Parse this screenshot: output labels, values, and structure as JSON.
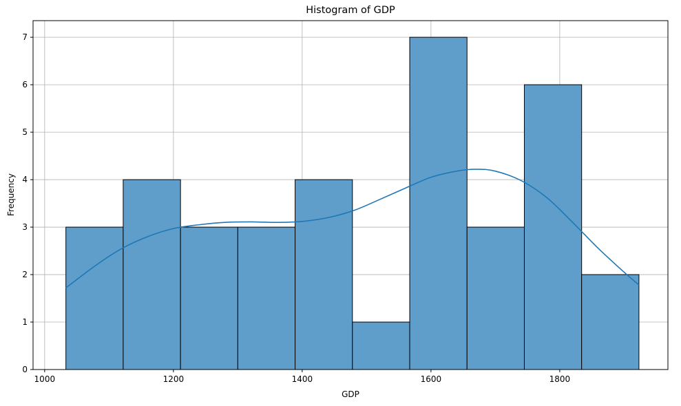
{
  "chart_data": {
    "type": "bar",
    "title": "Histogram of GDP",
    "xlabel": "GDP",
    "ylabel": "Frequency",
    "xlim": [
      982,
      1968
    ],
    "ylim": [
      0,
      7.35
    ],
    "grid": true,
    "x_ticks": [
      1000,
      1200,
      1400,
      1600,
      1800
    ],
    "x_tick_labels": [
      "1000",
      "1200",
      "1400",
      "1600",
      "1800"
    ],
    "y_ticks": [
      0,
      1,
      2,
      3,
      4,
      5,
      6,
      7
    ],
    "y_tick_labels": [
      "0",
      "1",
      "2",
      "3",
      "4",
      "5",
      "6",
      "7"
    ],
    "bins": [
      {
        "start": 1033,
        "end": 1122,
        "count": 3
      },
      {
        "start": 1122,
        "end": 1211,
        "count": 4
      },
      {
        "start": 1211,
        "end": 1300,
        "count": 3
      },
      {
        "start": 1300,
        "end": 1389,
        "count": 3
      },
      {
        "start": 1389,
        "end": 1478,
        "count": 4
      },
      {
        "start": 1478,
        "end": 1567,
        "count": 1
      },
      {
        "start": 1567,
        "end": 1656,
        "count": 7
      },
      {
        "start": 1656,
        "end": 1745,
        "count": 3
      },
      {
        "start": 1745,
        "end": 1834,
        "count": 6
      },
      {
        "start": 1834,
        "end": 1923,
        "count": 2
      }
    ],
    "kde": {
      "x": [
        1033,
        1080,
        1120,
        1160,
        1200,
        1240,
        1280,
        1320,
        1360,
        1400,
        1440,
        1480,
        1520,
        1560,
        1600,
        1640,
        1670,
        1700,
        1740,
        1780,
        1820,
        1860,
        1900,
        1923
      ],
      "y": [
        1.72,
        2.2,
        2.55,
        2.8,
        2.97,
        3.05,
        3.1,
        3.11,
        3.1,
        3.12,
        3.2,
        3.35,
        3.58,
        3.82,
        4.05,
        4.18,
        4.22,
        4.18,
        3.98,
        3.62,
        3.1,
        2.55,
        2.05,
        1.78
      ]
    },
    "colors": {
      "bar_fill": "#5f9ecb",
      "bar_edge": "#000000",
      "kde_line": "#1f77b4",
      "grid": "#b0b0b0"
    }
  }
}
